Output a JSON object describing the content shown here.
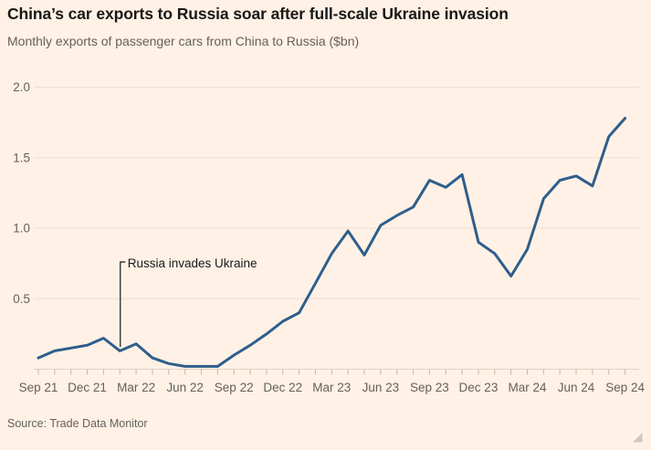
{
  "header": {
    "title": "China’s car exports to Russia soar after full-scale Ukraine invasion",
    "subtitle": "Monthly exports of passenger cars from China to Russia ($bn)"
  },
  "footer": {
    "source": "Source: Trade Data Monitor"
  },
  "colors": {
    "background": "#fff1e5",
    "line": "#2e5e8c",
    "grid": "#ecdfd0",
    "baseline": "#e0d3c3",
    "tick": "#c4b8ab",
    "axis_text": "#66605b",
    "title_text": "#1a1817",
    "subtitle_text": "#66605b",
    "annotation_line": "#1a1817",
    "annotation_text": "#1a1817",
    "resize_handle": "#c9c9c9"
  },
  "chart_data": {
    "type": "line",
    "title": "China’s car exports to Russia soar after full-scale Ukraine invasion",
    "subtitle": "Monthly exports of passenger cars from China to Russia ($bn)",
    "xlabel": "",
    "ylabel": "",
    "ylim": [
      0,
      2.0
    ],
    "yticks": [
      0.5,
      1.0,
      1.5,
      2.0
    ],
    "grid": "horizontal",
    "legend": "none",
    "x": [
      "Sep 21",
      "Oct 21",
      "Nov 21",
      "Dec 21",
      "Jan 22",
      "Feb 22",
      "Mar 22",
      "Apr 22",
      "May 22",
      "Jun 22",
      "Jul 22",
      "Aug 22",
      "Sep 22",
      "Oct 22",
      "Nov 22",
      "Dec 22",
      "Jan 23",
      "Feb 23",
      "Mar 23",
      "Apr 23",
      "May 23",
      "Jun 23",
      "Jul 23",
      "Aug 23",
      "Sep 23",
      "Oct 23",
      "Nov 23",
      "Dec 23",
      "Jan 24",
      "Feb 24",
      "Mar 24",
      "Apr 24",
      "May 24",
      "Jun 24",
      "Jul 24",
      "Aug 24",
      "Sep 24"
    ],
    "values": [
      0.08,
      0.13,
      0.15,
      0.17,
      0.22,
      0.13,
      0.18,
      0.08,
      0.04,
      0.02,
      0.02,
      0.02,
      0.1,
      0.17,
      0.25,
      0.34,
      0.4,
      0.61,
      0.82,
      0.98,
      0.81,
      1.02,
      1.09,
      1.15,
      1.34,
      1.29,
      1.38,
      0.9,
      0.82,
      0.66,
      0.85,
      1.21,
      1.34,
      1.37,
      1.3,
      1.65,
      1.78
    ],
    "x_tick_labels": [
      "Sep 21",
      "Dec 21",
      "Mar 22",
      "Jun 22",
      "Sep 22",
      "Dec 22",
      "Mar 23",
      "Jun 23",
      "Sep 23",
      "Dec 23",
      "Mar 24",
      "Jun 24",
      "Sep 24"
    ],
    "annotation": {
      "label": "Russia invades Ukraine",
      "x": "Feb 22",
      "value": 0.13
    },
    "source": "Source: Trade Data Monitor"
  }
}
